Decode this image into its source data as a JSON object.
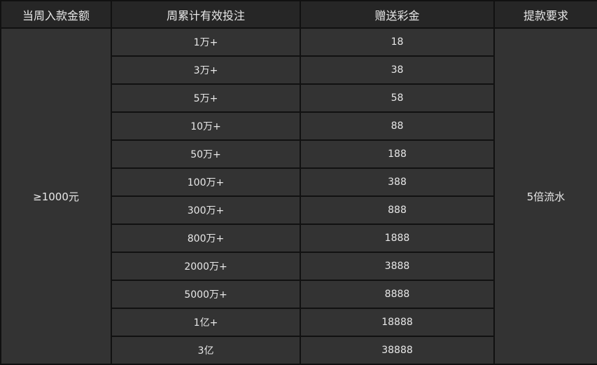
{
  "headers": [
    "当周入款金额",
    "周累计有效投注",
    "赠送彩金",
    "提款要求"
  ],
  "deposit": "≥1000元",
  "requirement": "5倍流水",
  "rows": [
    {
      "bet": "1万+",
      "bonus": "18"
    },
    {
      "bet": "3万+",
      "bonus": "38"
    },
    {
      "bet": "5万+",
      "bonus": "58"
    },
    {
      "bet": "10万+",
      "bonus": "88"
    },
    {
      "bet": "50万+",
      "bonus": "188"
    },
    {
      "bet": "100万+",
      "bonus": "388"
    },
    {
      "bet": "300万+",
      "bonus": "888"
    },
    {
      "bet": "800万+",
      "bonus": "1888"
    },
    {
      "bet": "2000万+",
      "bonus": "3888"
    },
    {
      "bet": "5000万+",
      "bonus": "8888"
    },
    {
      "bet": "1亿+",
      "bonus": "18888"
    },
    {
      "bet": "3亿",
      "bonus": "38888"
    }
  ]
}
